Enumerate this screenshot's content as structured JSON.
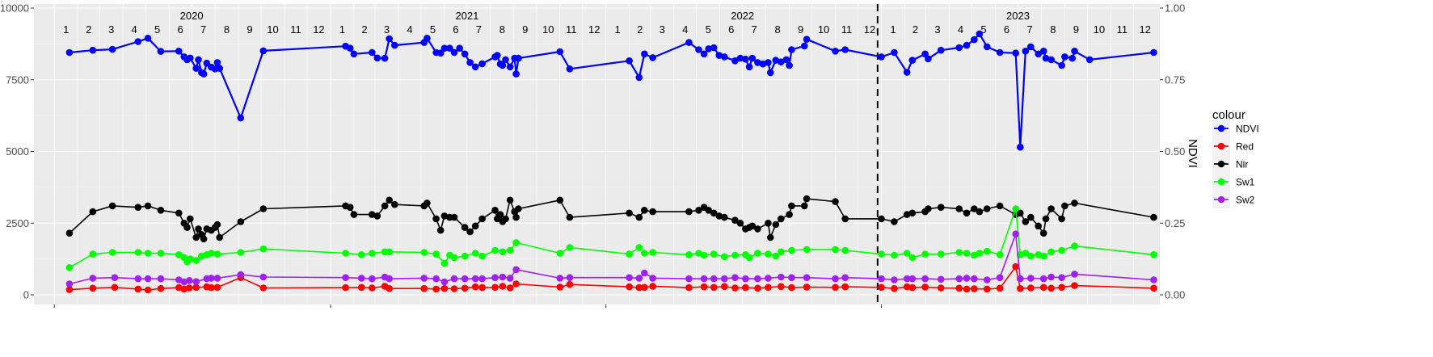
{
  "chart_data": {
    "type": "line",
    "title": "",
    "xlabel": "",
    "ylabel_left": "",
    "ylabel_right": "NDVI",
    "ylim_left": [
      0,
      10000
    ],
    "ylim_right": [
      0,
      1
    ],
    "y_ticks_left": [
      "0",
      "2500",
      "5000",
      "7500",
      "10000"
    ],
    "y_ticks_right": [
      "0.00",
      "0.25",
      "0.50",
      "0.75",
      "1.00"
    ],
    "grid": true,
    "legend_title": "colour",
    "legend_position": "right",
    "x_range": [
      "2019-12-05",
      "2024-01-05"
    ],
    "years": [
      "2020",
      "2021",
      "2022",
      "2023"
    ],
    "month_labels": [
      "1",
      "2",
      "3",
      "4",
      "5",
      "6",
      "7",
      "8",
      "9",
      "10",
      "11",
      "12"
    ],
    "vline_date": "2022-12-27",
    "series": [
      {
        "name": "NDVI",
        "axis": "right",
        "color": "#0000ff",
        "x": [
          "2020-01-21",
          "2020-02-21",
          "2020-03-18",
          "2020-04-21",
          "2020-05-04",
          "2020-05-21",
          "2020-06-14",
          "2020-06-21",
          "2020-06-25",
          "2020-06-29",
          "2020-07-07",
          "2020-07-10",
          "2020-07-14",
          "2020-07-17",
          "2020-07-21",
          "2020-07-27",
          "2020-08-01",
          "2020-08-04",
          "2020-08-07",
          "2020-09-04",
          "2020-10-04",
          "2021-01-21",
          "2021-01-27",
          "2021-02-01",
          "2021-02-25",
          "2021-03-04",
          "2021-03-14",
          "2021-03-20",
          "2021-03-27",
          "2021-05-05",
          "2021-05-09",
          "2021-05-21",
          "2021-05-27",
          "2021-06-01",
          "2021-06-08",
          "2021-06-14",
          "2021-06-21",
          "2021-06-28",
          "2021-07-05",
          "2021-07-12",
          "2021-07-21",
          "2021-08-07",
          "2021-08-10",
          "2021-08-14",
          "2021-08-17",
          "2021-08-21",
          "2021-08-27",
          "2021-09-02",
          "2021-09-04",
          "2021-09-07",
          "2021-11-01",
          "2021-11-14",
          "2022-02-01",
          "2022-02-14",
          "2022-02-21",
          "2022-03-04",
          "2022-04-21",
          "2022-05-04",
          "2022-05-11",
          "2022-05-17",
          "2022-05-24",
          "2022-05-31",
          "2022-06-07",
          "2022-06-21",
          "2022-06-28",
          "2022-07-05",
          "2022-07-10",
          "2022-07-14",
          "2022-07-21",
          "2022-07-28",
          "2022-08-04",
          "2022-08-07",
          "2022-08-14",
          "2022-08-21",
          "2022-08-28",
          "2022-09-01",
          "2022-09-04",
          "2022-09-21",
          "2022-09-24",
          "2022-11-01",
          "2022-11-14",
          "2023-01-01",
          "2023-01-18",
          "2023-02-04",
          "2023-02-11",
          "2023-02-28",
          "2023-03-04",
          "2023-03-21",
          "2023-04-14",
          "2023-04-24",
          "2023-05-04",
          "2023-05-11",
          "2023-05-21",
          "2023-06-07",
          "2023-06-28",
          "2023-07-04",
          "2023-07-11",
          "2023-07-18",
          "2023-07-28",
          "2023-08-04",
          "2023-08-07",
          "2023-08-14",
          "2023-08-28",
          "2023-09-01",
          "2023-09-11",
          "2023-09-14",
          "2023-10-04",
          "2023-12-28"
        ],
        "values": [
          0.845,
          0.853,
          0.856,
          0.883,
          0.895,
          0.849,
          0.85,
          0.83,
          0.82,
          0.826,
          0.79,
          0.82,
          0.775,
          0.77,
          0.808,
          0.794,
          0.788,
          0.81,
          0.79,
          0.617,
          0.851,
          0.867,
          0.86,
          0.84,
          0.845,
          0.826,
          0.825,
          0.893,
          0.87,
          0.88,
          0.895,
          0.845,
          0.843,
          0.86,
          0.86,
          0.845,
          0.86,
          0.84,
          0.81,
          0.795,
          0.806,
          0.83,
          0.835,
          0.805,
          0.8,
          0.82,
          0.795,
          0.825,
          0.77,
          0.825,
          0.848,
          0.788,
          0.816,
          0.758,
          0.84,
          0.827,
          0.88,
          0.855,
          0.84,
          0.858,
          0.862,
          0.835,
          0.83,
          0.816,
          0.825,
          0.822,
          0.795,
          0.825,
          0.81,
          0.805,
          0.81,
          0.775,
          0.818,
          0.812,
          0.82,
          0.8,
          0.855,
          0.868,
          0.891,
          0.85,
          0.855,
          0.83,
          0.845,
          0.776,
          0.818,
          0.84,
          0.823,
          0.853,
          0.862,
          0.87,
          0.89,
          0.91,
          0.865,
          0.845,
          0.843,
          0.515,
          0.85,
          0.865,
          0.84,
          0.85,
          0.825,
          0.82,
          0.8,
          0.83,
          0.825,
          0.85,
          0.82,
          0.845
        ]
      },
      {
        "name": "Red",
        "axis": "left",
        "color": "#ff0000",
        "x": [
          "2020-01-21",
          "2020-02-21",
          "2020-03-21",
          "2020-04-21",
          "2020-05-04",
          "2020-05-21",
          "2020-06-14",
          "2020-06-21",
          "2020-06-28",
          "2020-07-07",
          "2020-07-21",
          "2020-07-27",
          "2020-08-04",
          "2020-09-04",
          "2020-10-04",
          "2021-01-21",
          "2021-02-11",
          "2021-02-25",
          "2021-03-14",
          "2021-03-20",
          "2021-05-05",
          "2021-05-21",
          "2021-06-01",
          "2021-06-14",
          "2021-06-28",
          "2021-07-12",
          "2021-07-21",
          "2021-08-07",
          "2021-08-17",
          "2021-08-27",
          "2021-09-04",
          "2021-11-01",
          "2021-11-14",
          "2022-02-01",
          "2022-02-14",
          "2022-02-21",
          "2022-03-04",
          "2022-04-21",
          "2022-05-11",
          "2022-05-24",
          "2022-06-07",
          "2022-06-21",
          "2022-07-05",
          "2022-07-21",
          "2022-08-04",
          "2022-08-21",
          "2022-09-04",
          "2022-09-24",
          "2022-11-01",
          "2022-11-14",
          "2023-01-01",
          "2023-01-18",
          "2023-02-04",
          "2023-02-11",
          "2023-02-28",
          "2023-03-21",
          "2023-04-14",
          "2023-04-24",
          "2023-05-04",
          "2023-05-21",
          "2023-06-07",
          "2023-06-28",
          "2023-07-04",
          "2023-07-18",
          "2023-08-04",
          "2023-08-14",
          "2023-08-28",
          "2023-09-14",
          "2023-12-28"
        ],
        "values": [
          180,
          230,
          260,
          200,
          170,
          220,
          250,
          200,
          240,
          260,
          280,
          250,
          260,
          600,
          240,
          250,
          260,
          240,
          300,
          220,
          220,
          200,
          220,
          210,
          230,
          280,
          250,
          260,
          300,
          240,
          380,
          270,
          360,
          280,
          250,
          260,
          300,
          250,
          280,
          260,
          290,
          240,
          250,
          230,
          260,
          290,
          250,
          270,
          260,
          280,
          260,
          220,
          280,
          250,
          270,
          240,
          230,
          200,
          210,
          200,
          230,
          980,
          220,
          240,
          260,
          230,
          260,
          320,
          230
        ]
      },
      {
        "name": "Nir",
        "axis": "left",
        "color": "#000000",
        "x": [
          "2020-01-21",
          "2020-02-21",
          "2020-03-18",
          "2020-04-21",
          "2020-05-04",
          "2020-05-21",
          "2020-06-14",
          "2020-06-21",
          "2020-06-25",
          "2020-06-29",
          "2020-07-07",
          "2020-07-10",
          "2020-07-14",
          "2020-07-17",
          "2020-07-21",
          "2020-07-27",
          "2020-08-01",
          "2020-08-04",
          "2020-08-07",
          "2020-09-04",
          "2020-10-04",
          "2021-01-21",
          "2021-01-27",
          "2021-02-01",
          "2021-02-25",
          "2021-03-04",
          "2021-03-14",
          "2021-03-20",
          "2021-03-27",
          "2021-05-05",
          "2021-05-09",
          "2021-05-21",
          "2021-05-27",
          "2021-06-01",
          "2021-06-08",
          "2021-06-14",
          "2021-06-28",
          "2021-07-05",
          "2021-07-12",
          "2021-07-21",
          "2021-08-07",
          "2021-08-10",
          "2021-08-14",
          "2021-08-17",
          "2021-08-21",
          "2021-08-27",
          "2021-09-02",
          "2021-09-04",
          "2021-09-07",
          "2021-11-01",
          "2021-11-14",
          "2022-02-01",
          "2022-02-14",
          "2022-02-21",
          "2022-03-04",
          "2022-04-21",
          "2022-05-04",
          "2022-05-11",
          "2022-05-17",
          "2022-05-24",
          "2022-05-31",
          "2022-06-07",
          "2022-06-21",
          "2022-06-28",
          "2022-07-05",
          "2022-07-10",
          "2022-07-14",
          "2022-07-21",
          "2022-08-04",
          "2022-08-07",
          "2022-08-14",
          "2022-08-21",
          "2022-09-01",
          "2022-09-04",
          "2022-09-21",
          "2022-09-24",
          "2022-11-01",
          "2022-11-14",
          "2023-01-01",
          "2023-01-18",
          "2023-02-04",
          "2023-02-11",
          "2023-02-28",
          "2023-03-04",
          "2023-03-21",
          "2023-04-14",
          "2023-04-24",
          "2023-05-04",
          "2023-05-11",
          "2023-05-21",
          "2023-06-07",
          "2023-06-28",
          "2023-07-04",
          "2023-07-11",
          "2023-07-18",
          "2023-07-28",
          "2023-08-04",
          "2023-08-07",
          "2023-08-14",
          "2023-08-28",
          "2023-09-01",
          "2023-09-14",
          "2023-12-28"
        ],
        "values": [
          2150,
          2900,
          3100,
          3050,
          3100,
          2950,
          2850,
          2500,
          2350,
          2650,
          2000,
          2300,
          2100,
          1950,
          2300,
          2250,
          2350,
          2450,
          2000,
          2550,
          3000,
          3100,
          3050,
          2800,
          2800,
          2750,
          3100,
          3300,
          3150,
          3100,
          3200,
          2650,
          2250,
          2750,
          2700,
          2700,
          2350,
          2200,
          2400,
          2650,
          2950,
          2650,
          2800,
          2550,
          2650,
          3300,
          2900,
          2700,
          3000,
          3300,
          2700,
          2850,
          2700,
          2950,
          2900,
          2900,
          2950,
          3050,
          2950,
          2850,
          2750,
          2700,
          2600,
          2500,
          2300,
          2350,
          2400,
          2300,
          2500,
          2000,
          2450,
          2650,
          2800,
          3100,
          3100,
          3350,
          3250,
          2650,
          2650,
          2550,
          2800,
          2850,
          2900,
          3000,
          3050,
          3000,
          2850,
          3000,
          2900,
          3000,
          3100,
          2800,
          2850,
          2550,
          2700,
          2400,
          2150,
          2650,
          3000,
          2650,
          3100,
          3200,
          2700
        ]
      },
      {
        "name": "Sw1",
        "axis": "left",
        "color": "#00ff00",
        "x": [
          "2020-01-21",
          "2020-02-21",
          "2020-03-18",
          "2020-04-21",
          "2020-05-04",
          "2020-05-21",
          "2020-06-14",
          "2020-06-21",
          "2020-06-25",
          "2020-06-29",
          "2020-07-07",
          "2020-07-14",
          "2020-07-21",
          "2020-07-27",
          "2020-08-04",
          "2020-09-04",
          "2020-10-04",
          "2021-01-21",
          "2021-02-11",
          "2021-02-25",
          "2021-03-14",
          "2021-03-20",
          "2021-05-05",
          "2021-05-21",
          "2021-06-01",
          "2021-06-08",
          "2021-06-14",
          "2021-06-28",
          "2021-07-12",
          "2021-07-21",
          "2021-08-07",
          "2021-08-17",
          "2021-08-27",
          "2021-09-04",
          "2021-11-01",
          "2021-11-14",
          "2022-02-01",
          "2022-02-14",
          "2022-02-21",
          "2022-03-04",
          "2022-04-21",
          "2022-05-04",
          "2022-05-11",
          "2022-05-24",
          "2022-06-07",
          "2022-06-21",
          "2022-07-05",
          "2022-07-10",
          "2022-07-21",
          "2022-08-04",
          "2022-08-14",
          "2022-08-21",
          "2022-09-04",
          "2022-09-24",
          "2022-11-01",
          "2022-11-14",
          "2023-01-01",
          "2023-01-18",
          "2023-02-04",
          "2023-02-11",
          "2023-02-28",
          "2023-03-21",
          "2023-04-14",
          "2023-04-24",
          "2023-05-04",
          "2023-05-11",
          "2023-05-21",
          "2023-06-07",
          "2023-06-28",
          "2023-07-04",
          "2023-07-11",
          "2023-07-18",
          "2023-07-28",
          "2023-08-04",
          "2023-08-14",
          "2023-08-28",
          "2023-09-14",
          "2023-12-28"
        ],
        "values": [
          950,
          1420,
          1480,
          1480,
          1450,
          1450,
          1400,
          1300,
          1150,
          1250,
          1200,
          1350,
          1400,
          1450,
          1420,
          1480,
          1600,
          1450,
          1400,
          1450,
          1500,
          1500,
          1480,
          1420,
          1100,
          1380,
          1300,
          1350,
          1450,
          1350,
          1550,
          1500,
          1550,
          1820,
          1450,
          1650,
          1420,
          1650,
          1450,
          1480,
          1400,
          1450,
          1380,
          1420,
          1330,
          1380,
          1400,
          1300,
          1450,
          1420,
          1350,
          1500,
          1550,
          1580,
          1580,
          1550,
          1420,
          1380,
          1450,
          1300,
          1420,
          1420,
          1480,
          1450,
          1380,
          1450,
          1520,
          1400,
          3000,
          1400,
          1450,
          1350,
          1400,
          1350,
          1500,
          1550,
          1700,
          1400
        ]
      },
      {
        "name": "Sw2",
        "axis": "left",
        "color": "#a020f0",
        "x": [
          "2020-01-21",
          "2020-02-21",
          "2020-03-21",
          "2020-04-21",
          "2020-05-04",
          "2020-05-21",
          "2020-06-14",
          "2020-06-21",
          "2020-06-28",
          "2020-07-07",
          "2020-07-21",
          "2020-07-27",
          "2020-08-04",
          "2020-09-04",
          "2020-10-04",
          "2021-01-21",
          "2021-02-11",
          "2021-02-25",
          "2021-03-14",
          "2021-03-20",
          "2021-05-05",
          "2021-05-21",
          "2021-06-01",
          "2021-06-14",
          "2021-06-28",
          "2021-07-12",
          "2021-07-21",
          "2021-08-07",
          "2021-08-17",
          "2021-08-27",
          "2021-09-04",
          "2021-11-01",
          "2021-11-14",
          "2022-02-01",
          "2022-02-14",
          "2022-02-21",
          "2022-03-04",
          "2022-04-21",
          "2022-05-11",
          "2022-05-24",
          "2022-06-07",
          "2022-06-21",
          "2022-07-05",
          "2022-07-21",
          "2022-08-04",
          "2022-08-21",
          "2022-09-04",
          "2022-09-24",
          "2022-11-01",
          "2022-11-14",
          "2023-01-01",
          "2023-01-18",
          "2023-02-04",
          "2023-02-11",
          "2023-02-28",
          "2023-03-21",
          "2023-04-14",
          "2023-04-24",
          "2023-05-04",
          "2023-05-21",
          "2023-06-07",
          "2023-06-28",
          "2023-07-04",
          "2023-07-18",
          "2023-08-04",
          "2023-08-14",
          "2023-08-28",
          "2023-09-14",
          "2023-12-28"
        ],
        "values": [
          380,
          580,
          600,
          560,
          560,
          560,
          520,
          450,
          500,
          460,
          560,
          580,
          580,
          700,
          620,
          600,
          580,
          560,
          620,
          560,
          580,
          560,
          450,
          560,
          560,
          560,
          560,
          600,
          620,
          580,
          880,
          580,
          600,
          600,
          580,
          760,
          580,
          560,
          560,
          560,
          560,
          600,
          560,
          560,
          580,
          620,
          600,
          600,
          560,
          600,
          560,
          520,
          560,
          560,
          560,
          540,
          560,
          580,
          560,
          520,
          600,
          2120,
          560,
          580,
          560,
          620,
          600,
          720,
          520
        ]
      }
    ]
  }
}
